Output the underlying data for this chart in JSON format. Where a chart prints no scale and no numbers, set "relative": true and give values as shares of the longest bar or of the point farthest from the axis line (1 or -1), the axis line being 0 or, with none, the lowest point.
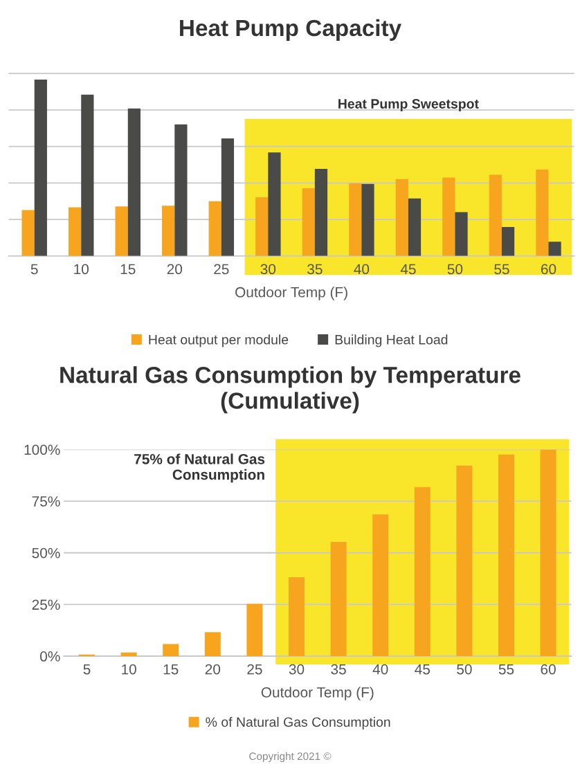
{
  "chart_data": [
    {
      "type": "bar",
      "title": "Heat Pump Capacity",
      "xlabel": "Outdoor Temp (F)",
      "relative": true,
      "grid": "y",
      "legend": "bottom",
      "categories": [
        "5",
        "10",
        "15",
        "20",
        "25",
        "30",
        "35",
        "40",
        "45",
        "50",
        "55",
        "60"
      ],
      "series": [
        {
          "name": "Heat output per module",
          "color": "#f7a51e",
          "values": [
            0.26,
            0.276,
            0.281,
            0.285,
            0.31,
            0.333,
            0.384,
            0.413,
            0.436,
            0.445,
            0.461,
            0.49
          ]
        },
        {
          "name": "Building Heat Load",
          "color": "#4a4a48",
          "values": [
            1,
            0.915,
            0.836,
            0.746,
            0.667,
            0.587,
            0.494,
            0.409,
            0.326,
            0.249,
            0.164,
            0.081
          ]
        }
      ],
      "bands": [
        {
          "axis": "x",
          "from": "30",
          "to": "60",
          "label": "Heat Pump Sweetspot",
          "color": "#f9e62b"
        }
      ]
    },
    {
      "type": "bar",
      "title": "Natural Gas Consumption by Temperature (Cumulative)",
      "xlabel": "Outdoor Temp (F)",
      "grid": "y",
      "legend": "bottom",
      "categories": [
        "5",
        "10",
        "15",
        "20",
        "25",
        "30",
        "35",
        "40",
        "45",
        "50",
        "55",
        "60"
      ],
      "series": [
        {
          "name": "% of Natural Gas Consumption",
          "color": "#f7a51e",
          "values": [
            0.8,
            1.8,
            5.9,
            11.6,
            25.3,
            38.2,
            55.3,
            68.6,
            81.8,
            92.2,
            97.6,
            100
          ]
        }
      ],
      "ylim": [
        0,
        100
      ],
      "yticks": [
        {
          "value": 0,
          "label": "0%"
        },
        {
          "value": 25,
          "label": "25%"
        },
        {
          "value": 50,
          "label": "50%"
        },
        {
          "value": 75,
          "label": "75%"
        },
        {
          "value": 100,
          "label": "100%"
        }
      ],
      "bands": [
        {
          "axis": "x",
          "from": "30",
          "to": "60",
          "color": "#f9e62b"
        }
      ],
      "annotations": [
        "75% of Natural Gas\nConsumption",
        "Copyright 2021 ©"
      ]
    }
  ]
}
